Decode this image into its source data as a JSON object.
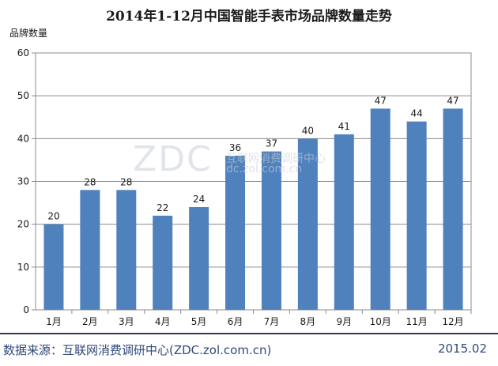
{
  "chart_data": {
    "type": "bar",
    "title": "2014年1-12月中国智能手表市场品牌数量走势",
    "ylabel": "品牌数量",
    "xlabel": "",
    "categories": [
      "1月",
      "2月",
      "3月",
      "4月",
      "5月",
      "6月",
      "7月",
      "8月",
      "9月",
      "10月",
      "11月",
      "12月"
    ],
    "values": [
      20,
      28,
      28,
      22,
      24,
      36,
      37,
      40,
      41,
      47,
      44,
      47
    ],
    "ylim": [
      0,
      60
    ],
    "yticks": [
      0,
      10,
      20,
      30,
      40,
      50,
      60
    ],
    "grid": true,
    "bar_color": "#4f81bd"
  },
  "watermark": {
    "logo": "ZDC",
    "cn": "互联网消费调研中心",
    "url": "dc.zol.com.cn"
  },
  "footer": {
    "source": "数据来源：互联网消费调研中心(ZDC.zol.com.cn)",
    "date": "2015.02"
  }
}
